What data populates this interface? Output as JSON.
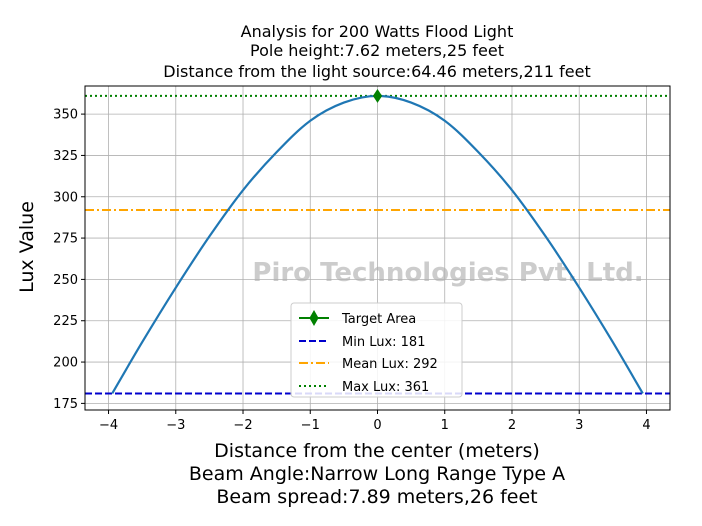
{
  "chart_data": {
    "type": "line",
    "title_lines": [
      "Analysis for 200 Watts Flood Light",
      "Pole height:7.62 meters,25 feet",
      "Distance from the light source:64.46 meters,211 feet"
    ],
    "xlabel_lines": [
      "Distance from the center (meters)",
      "Beam Angle:Narrow Long Range Type A",
      "Beam spread:7.89 meters,26 feet"
    ],
    "ylabel": "Lux Value",
    "watermark": "Piro Technologies Pvt. Ltd.",
    "xlim": [
      -4.35,
      4.35
    ],
    "ylim": [
      171,
      367
    ],
    "xticks": [
      -4,
      -3,
      -2,
      -1,
      0,
      1,
      2,
      3,
      4
    ],
    "xtick_labels": [
      "−4",
      "−3",
      "−2",
      "−1",
      "0",
      "1",
      "2",
      "3",
      "4"
    ],
    "yticks": [
      175,
      200,
      225,
      250,
      275,
      300,
      325,
      350
    ],
    "ytick_labels": [
      "175",
      "200",
      "225",
      "250",
      "275",
      "300",
      "325",
      "350"
    ],
    "grid": true,
    "legend_position": "lower-center",
    "series": [
      {
        "name": "",
        "kind": "curve",
        "color": "#1f77b4",
        "x": [
          -3.945,
          -3.5,
          -3.0,
          -2.5,
          -2.0,
          -1.5,
          -1.0,
          -0.5,
          0.0,
          0.5,
          1.0,
          1.5,
          2.0,
          2.5,
          3.0,
          3.5,
          3.945
        ],
        "y": [
          181,
          212,
          245,
          276,
          304,
          327,
          346,
          357,
          361,
          357,
          346,
          327,
          304,
          276,
          245,
          212,
          181
        ]
      },
      {
        "name": "Target Area",
        "kind": "marker",
        "color": "#008000",
        "x": [
          0
        ],
        "y": [
          361
        ]
      },
      {
        "name": "Min Lux: 181",
        "kind": "hline",
        "style": "dashed",
        "color": "#0000cc",
        "y": 181
      },
      {
        "name": "Mean Lux: 292",
        "kind": "hline",
        "style": "dashdot",
        "color": "#ffa500",
        "y": 292
      },
      {
        "name": "Max Lux: 361",
        "kind": "hline",
        "style": "dotted",
        "color": "#008000",
        "y": 361
      }
    ]
  }
}
